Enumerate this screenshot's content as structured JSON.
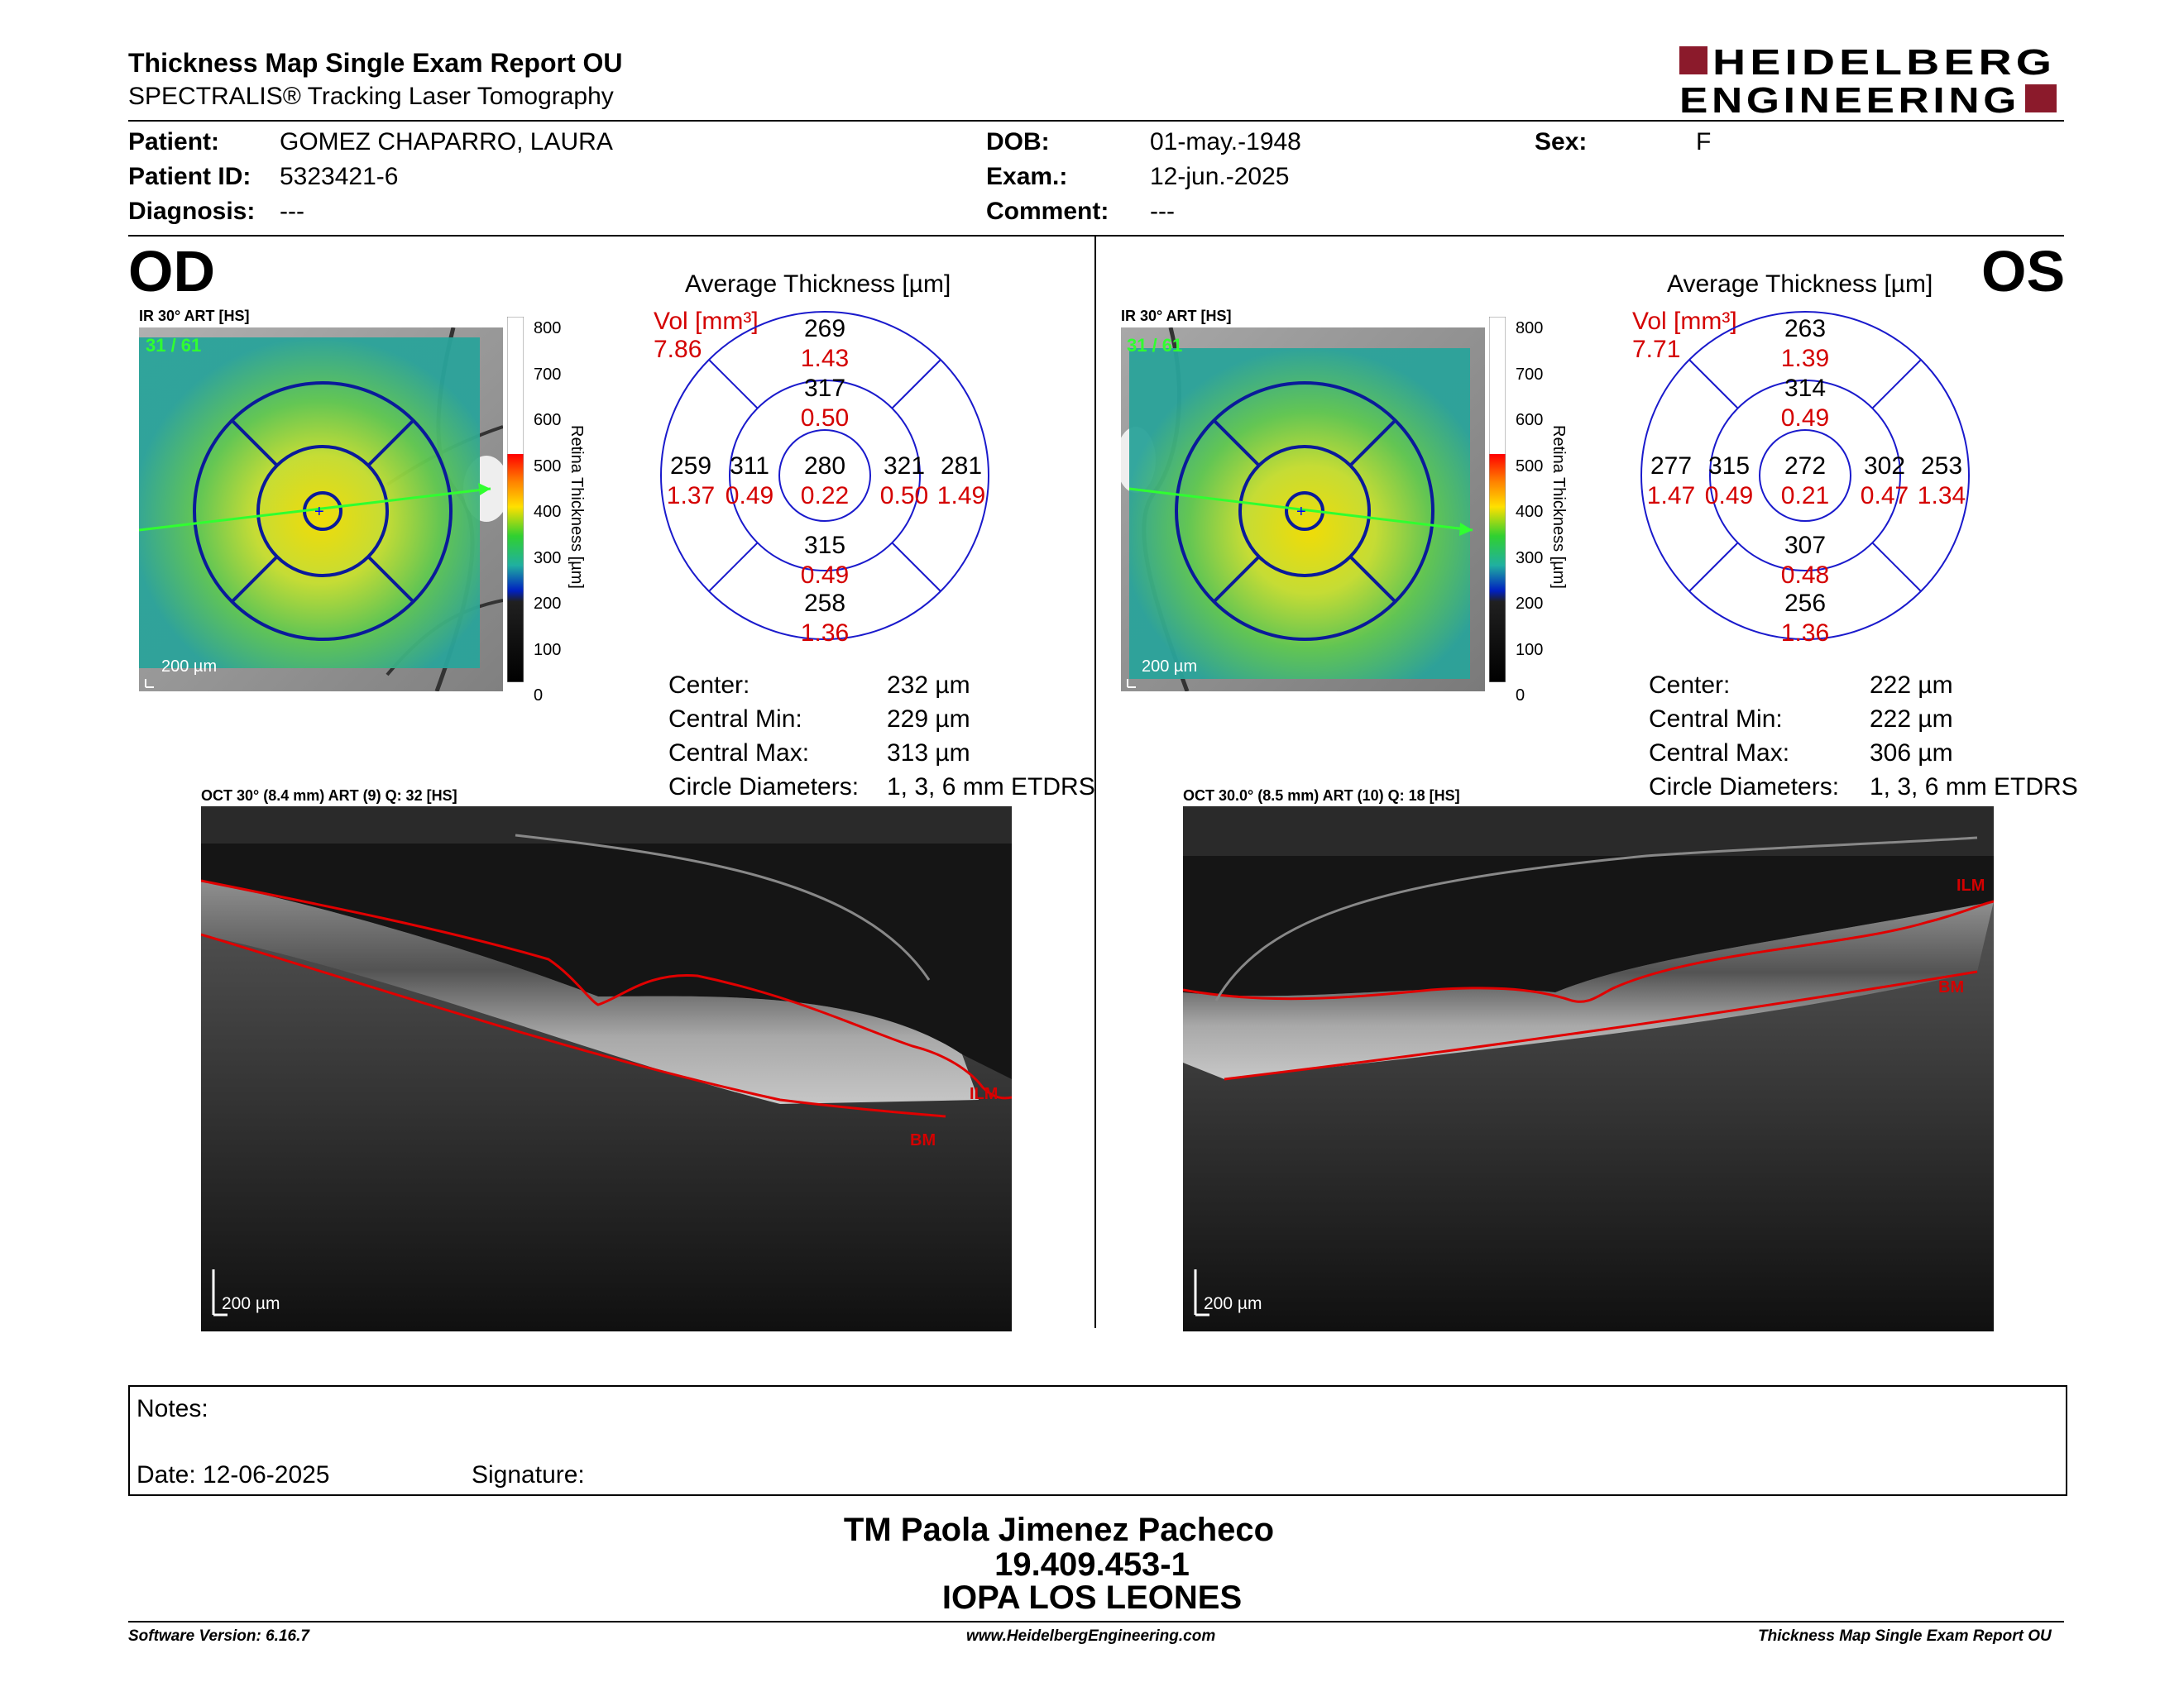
{
  "report": {
    "title": "Thickness Map Single Exam Report OU",
    "subtitle": "SPECTRALIS® Tracking Laser Tomography",
    "logo_line1": "HEIDELBERG",
    "logo_line2": "ENGINEERING",
    "brand_color": "#8b1a2b"
  },
  "patient": {
    "patient_label": "Patient:",
    "patient_value": "GOMEZ CHAPARRO, LAURA",
    "id_label": "Patient ID:",
    "id_value": "5323421-6",
    "diag_label": "Diagnosis:",
    "diag_value": "---",
    "dob_label": "DOB:",
    "dob_value": "01-may.-1948",
    "exam_label": "Exam.:",
    "exam_value": "12-jun.-2025",
    "comment_label": "Comment:",
    "comment_value": "---",
    "sex_label": "Sex:",
    "sex_value": "F"
  },
  "od": {
    "eye_label": "OD",
    "ir_header": "IR 30° ART [HS]",
    "ir_counter": "31 / 61",
    "ir_scale": "200 µm",
    "avg_title": "Average Thickness [µm]",
    "vol_label": "Vol [mm³]",
    "vol_value": "7.86",
    "grid": {
      "superior_outer": "269",
      "superior_outer_vol": "1.43",
      "superior_inner": "317",
      "superior_inner_vol": "0.50",
      "temporal_outer": "259",
      "temporal_outer_vol": "1.37",
      "temporal_inner": "311",
      "temporal_inner_vol": "0.49",
      "center": "280",
      "center_vol": "0.22",
      "nasal_inner": "321",
      "nasal_inner_vol": "0.50",
      "nasal_outer": "281",
      "nasal_outer_vol": "1.49",
      "inferior_inner": "315",
      "inferior_inner_vol": "0.49",
      "inferior_outer": "258",
      "inferior_outer_vol": "1.36"
    },
    "stats": {
      "center_label": "Center:",
      "center_value": "232 µm",
      "min_label": "Central Min:",
      "min_value": "229 µm",
      "max_label": "Central Max:",
      "max_value": "313 µm",
      "diam_label": "Circle Diameters:",
      "diam_value": "1, 3, 6 mm ETDRS"
    },
    "oct_header": "OCT 30° (8.4 mm) ART (9) Q: 32 [HS]",
    "oct_scale": "200 µm",
    "ilm_label": "ILM",
    "bm_label": "BM"
  },
  "os": {
    "eye_label": "OS",
    "ir_header": "IR 30° ART [HS]",
    "ir_counter": "31 / 61",
    "ir_scale": "200 µm",
    "avg_title": "Average Thickness [µm]",
    "vol_label": "Vol [mm³]",
    "vol_value": "7.71",
    "grid": {
      "superior_outer": "263",
      "superior_outer_vol": "1.39",
      "superior_inner": "314",
      "superior_inner_vol": "0.49",
      "temporal_outer": "277",
      "temporal_outer_vol": "1.47",
      "temporal_inner": "315",
      "temporal_inner_vol": "0.49",
      "center": "272",
      "center_vol": "0.21",
      "nasal_inner": "302",
      "nasal_inner_vol": "0.47",
      "nasal_outer": "253",
      "nasal_outer_vol": "1.34",
      "inferior_inner": "307",
      "inferior_inner_vol": "0.48",
      "inferior_outer": "256",
      "inferior_outer_vol": "1.36"
    },
    "stats": {
      "center_label": "Center:",
      "center_value": "222 µm",
      "min_label": "Central Min:",
      "min_value": "222 µm",
      "max_label": "Central Max:",
      "max_value": "306 µm",
      "diam_label": "Circle Diameters:",
      "diam_value": "1, 3, 6 mm ETDRS"
    },
    "oct_header": "OCT 30.0° (8.5 mm) ART (10) Q: 18 [HS]",
    "oct_scale": "200 µm",
    "ilm_label": "ILM",
    "bm_label": "BM"
  },
  "colorbar": {
    "ticks": [
      "800",
      "700",
      "600",
      "500",
      "400",
      "300",
      "200",
      "100",
      "0"
    ],
    "label": "Retina Thickness [µm]"
  },
  "notes": {
    "notes_label": "Notes:",
    "date_label": "Date: 12-06-2025",
    "signature_label": "Signature:"
  },
  "signatory": {
    "name": "TM Paola Jimenez Pacheco",
    "rut": "19.409.453-1",
    "institution": "IOPA LOS LEONES"
  },
  "footer": {
    "software": "Software Version: 6.16.7",
    "website": "www.HeidelbergEngineering.com",
    "report_name": "Thickness Map Single Exam Report OU"
  }
}
